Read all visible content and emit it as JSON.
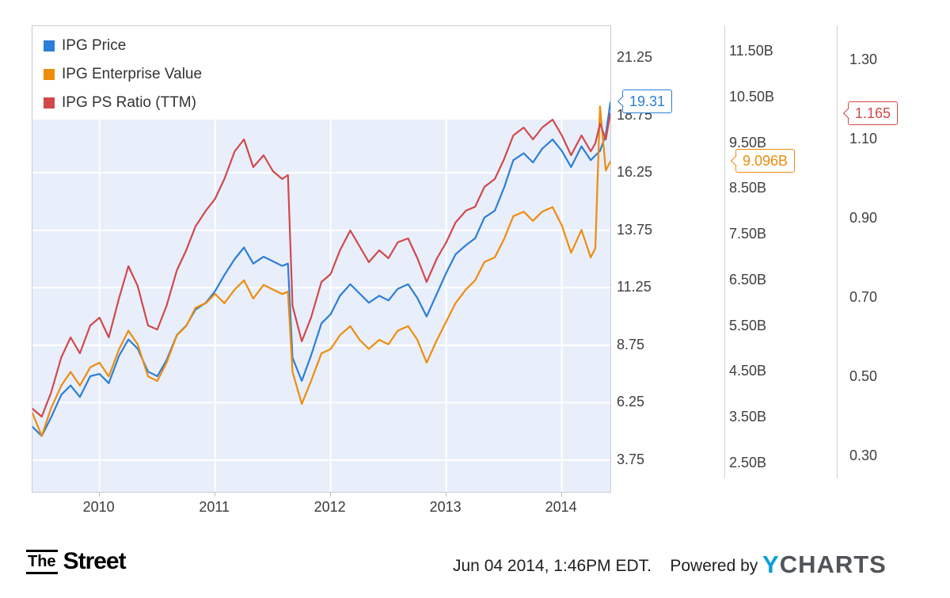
{
  "legend": {
    "items": [
      {
        "label": "IPG Price",
        "color": "#2b7fd6"
      },
      {
        "label": "IPG Enterprise Value",
        "color": "#ee8c0d"
      },
      {
        "label": "IPG PS Ratio (TTM)",
        "color": "#d0494a"
      }
    ]
  },
  "axes": {
    "price": {
      "ticks": [
        {
          "label": "21.25",
          "value": 21.25
        },
        {
          "label": "18.75",
          "value": 18.75
        },
        {
          "label": "16.25",
          "value": 16.25
        },
        {
          "label": "13.75",
          "value": 13.75
        },
        {
          "label": "11.25",
          "value": 11.25
        },
        {
          "label": "8.75",
          "value": 8.75
        },
        {
          "label": "6.25",
          "value": 6.25
        },
        {
          "label": "3.75",
          "value": 3.75
        }
      ]
    },
    "ev": {
      "ticks": [
        {
          "label": "11.50B",
          "value": 11.5
        },
        {
          "label": "10.50B",
          "value": 10.5
        },
        {
          "label": "9.50B",
          "value": 9.5
        },
        {
          "label": "8.50B",
          "value": 8.5
        },
        {
          "label": "7.50B",
          "value": 7.5
        },
        {
          "label": "6.50B",
          "value": 6.5
        },
        {
          "label": "5.50B",
          "value": 5.5
        },
        {
          "label": "4.50B",
          "value": 4.5
        },
        {
          "label": "3.50B",
          "value": 3.5
        },
        {
          "label": "2.50B",
          "value": 2.5
        }
      ]
    },
    "ps": {
      "ticks": [
        {
          "label": "1.30",
          "value": 1.3
        },
        {
          "label": "1.10",
          "value": 1.1
        },
        {
          "label": "0.90",
          "value": 0.9
        },
        {
          "label": "0.70",
          "value": 0.7
        },
        {
          "label": "0.50",
          "value": 0.5
        },
        {
          "label": "0.30",
          "value": 0.3
        }
      ]
    }
  },
  "x_axis": {
    "ticks": [
      {
        "label": "2010",
        "value": 2010
      },
      {
        "label": "2011",
        "value": 2011
      },
      {
        "label": "2012",
        "value": 2012
      },
      {
        "label": "2013",
        "value": 2013
      },
      {
        "label": "2014",
        "value": 2014
      }
    ]
  },
  "callouts": [
    {
      "id": "price",
      "label": "19.31",
      "value": 19.31,
      "color": "#2b7fd6"
    },
    {
      "id": "ev",
      "label": "9.096B",
      "value": 9.096,
      "color": "#ee8c0d"
    },
    {
      "id": "ps",
      "label": "1.165",
      "value": 1.165,
      "color": "#d0494a"
    }
  ],
  "chart_data": {
    "type": "line",
    "x_range": [
      2009.42,
      2014.42
    ],
    "axis_ranges": {
      "price": [
        3.75,
        21.25
      ],
      "ev": [
        2.5,
        11.5
      ],
      "ps": [
        0.3,
        1.3
      ]
    },
    "legend_position": "top-left",
    "grid": true,
    "x": [
      2009.42,
      2009.5,
      2009.58,
      2009.67,
      2009.75,
      2009.83,
      2009.92,
      2010.0,
      2010.08,
      2010.17,
      2010.25,
      2010.33,
      2010.42,
      2010.5,
      2010.58,
      2010.67,
      2010.75,
      2010.83,
      2010.92,
      2011.0,
      2011.08,
      2011.17,
      2011.25,
      2011.33,
      2011.42,
      2011.5,
      2011.58,
      2011.63,
      2011.67,
      2011.75,
      2011.83,
      2011.92,
      2012.0,
      2012.08,
      2012.17,
      2012.25,
      2012.33,
      2012.42,
      2012.5,
      2012.58,
      2012.67,
      2012.75,
      2012.83,
      2012.92,
      2013.0,
      2013.08,
      2013.17,
      2013.25,
      2013.33,
      2013.42,
      2013.5,
      2013.58,
      2013.67,
      2013.75,
      2013.83,
      2013.92,
      2014.0,
      2014.08,
      2014.17,
      2014.25,
      2014.29,
      2014.33,
      2014.38,
      2014.42
    ],
    "series": [
      {
        "name": "IPG Price",
        "axis": "price",
        "color": "#2b7fd6",
        "last_value": 19.31,
        "values": [
          5.2,
          4.8,
          5.6,
          6.6,
          7.0,
          6.5,
          7.4,
          7.5,
          7.1,
          8.3,
          9.0,
          8.6,
          7.6,
          7.4,
          8.1,
          9.2,
          9.6,
          10.3,
          10.6,
          11.1,
          11.8,
          12.5,
          13.0,
          12.3,
          12.6,
          12.4,
          12.2,
          12.3,
          8.2,
          7.2,
          8.3,
          9.7,
          10.1,
          10.9,
          11.4,
          11.0,
          10.6,
          10.9,
          10.7,
          11.2,
          11.4,
          10.8,
          10.0,
          11.0,
          11.9,
          12.7,
          13.1,
          13.4,
          14.3,
          14.6,
          15.6,
          16.8,
          17.1,
          16.7,
          17.3,
          17.7,
          17.2,
          16.5,
          17.4,
          16.8,
          17.0,
          17.2,
          17.9,
          19.31
        ]
      },
      {
        "name": "IPG Enterprise Value",
        "axis": "ev",
        "color": "#ee8c0d",
        "last_value": 9.096,
        "values": [
          3.6,
          3.1,
          3.7,
          4.2,
          4.5,
          4.2,
          4.6,
          4.7,
          4.4,
          5.0,
          5.4,
          5.1,
          4.4,
          4.3,
          4.7,
          5.3,
          5.5,
          5.9,
          6.0,
          6.2,
          6.0,
          6.3,
          6.5,
          6.1,
          6.4,
          6.3,
          6.2,
          6.25,
          4.5,
          3.8,
          4.3,
          4.9,
          5.0,
          5.3,
          5.5,
          5.2,
          5.0,
          5.2,
          5.1,
          5.4,
          5.5,
          5.2,
          4.7,
          5.2,
          5.6,
          6.0,
          6.3,
          6.5,
          6.9,
          7.0,
          7.4,
          7.9,
          8.0,
          7.8,
          8.0,
          8.1,
          7.7,
          7.1,
          7.6,
          7.0,
          7.2,
          10.3,
          8.9,
          9.096
        ]
      },
      {
        "name": "IPG PS Ratio (TTM)",
        "axis": "ps",
        "color": "#d0494a",
        "last_value": 1.165,
        "values": [
          0.42,
          0.4,
          0.46,
          0.55,
          0.6,
          0.56,
          0.63,
          0.65,
          0.6,
          0.7,
          0.78,
          0.73,
          0.63,
          0.62,
          0.68,
          0.77,
          0.82,
          0.88,
          0.92,
          0.95,
          1.0,
          1.07,
          1.1,
          1.03,
          1.06,
          1.02,
          1.0,
          1.01,
          0.68,
          0.59,
          0.65,
          0.74,
          0.76,
          0.82,
          0.87,
          0.83,
          0.79,
          0.82,
          0.8,
          0.84,
          0.85,
          0.8,
          0.74,
          0.8,
          0.84,
          0.89,
          0.92,
          0.93,
          0.98,
          1.0,
          1.05,
          1.11,
          1.13,
          1.1,
          1.13,
          1.15,
          1.11,
          1.06,
          1.11,
          1.07,
          1.09,
          1.14,
          1.1,
          1.165
        ]
      }
    ]
  },
  "colors": {
    "plot_band": "#e9eefb",
    "grid_line": "#ffffff"
  },
  "footer": {
    "logo_the": "The",
    "logo_street": "Street",
    "timestamp": "Jun 04 2014, 1:46PM EDT.",
    "powered_by": "Powered by",
    "brand_y": "Y",
    "brand_rest": "CHARTS"
  }
}
